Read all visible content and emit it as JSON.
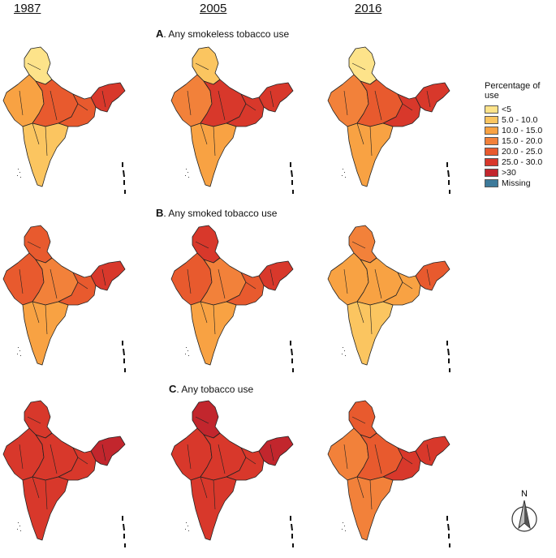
{
  "years": [
    "1987",
    "2005",
    "2016"
  ],
  "panels": [
    {
      "letter": "A",
      "title": ". Any smokeless tobacco use"
    },
    {
      "letter": "B",
      "title": ". Any smoked tobacco use"
    },
    {
      "letter": "C",
      "title": ". Any tobacco use"
    }
  ],
  "legend": {
    "title": "Percentage of use",
    "items": [
      {
        "label": "<5",
        "color": "#fde38a"
      },
      {
        "label": "5.0 - 10.0",
        "color": "#fbc560"
      },
      {
        "label": "10.0 - 15.0",
        "color": "#f8a243"
      },
      {
        "label": "15.0 - 20.0",
        "color": "#f2813a"
      },
      {
        "label": "20.0 - 25.0",
        "color": "#e85a2e"
      },
      {
        "label": "25.0 - 30.0",
        "color": "#d8382b"
      },
      {
        "label": ">30",
        "color": "#c2262d"
      },
      {
        "label": "Missing",
        "color": "#3d7a9a"
      }
    ]
  },
  "compass": {
    "label": "N"
  },
  "maps": [
    {
      "panel": "A",
      "year": "1987",
      "levels": {
        "north": 0,
        "west": 2,
        "central": 4,
        "east": 4,
        "south": 1,
        "northeast": 5
      }
    },
    {
      "panel": "A",
      "year": "2005",
      "levels": {
        "north": 1,
        "west": 3,
        "central": 5,
        "east": 5,
        "south": 2,
        "northeast": 5
      }
    },
    {
      "panel": "A",
      "year": "2016",
      "levels": {
        "north": 0,
        "west": 3,
        "central": 4,
        "east": 5,
        "south": 2,
        "northeast": 5
      }
    },
    {
      "panel": "B",
      "year": "1987",
      "levels": {
        "north": 4,
        "west": 4,
        "central": 3,
        "east": 4,
        "south": 2,
        "northeast": 5
      }
    },
    {
      "panel": "B",
      "year": "2005",
      "levels": {
        "north": 5,
        "west": 4,
        "central": 3,
        "east": 4,
        "south": 2,
        "northeast": 5
      }
    },
    {
      "panel": "B",
      "year": "2016",
      "levels": {
        "north": 3,
        "west": 2,
        "central": 2,
        "east": 2,
        "south": 1,
        "northeast": 4
      }
    },
    {
      "panel": "C",
      "year": "1987",
      "levels": {
        "north": 5,
        "west": 5,
        "central": 5,
        "east": 5,
        "south": 5,
        "northeast": 6
      }
    },
    {
      "panel": "C",
      "year": "2005",
      "levels": {
        "north": 6,
        "west": 5,
        "central": 5,
        "east": 5,
        "south": 5,
        "northeast": 6
      }
    },
    {
      "panel": "C",
      "year": "2016",
      "levels": {
        "north": 4,
        "west": 3,
        "central": 4,
        "east": 5,
        "south": 3,
        "northeast": 5
      }
    }
  ]
}
